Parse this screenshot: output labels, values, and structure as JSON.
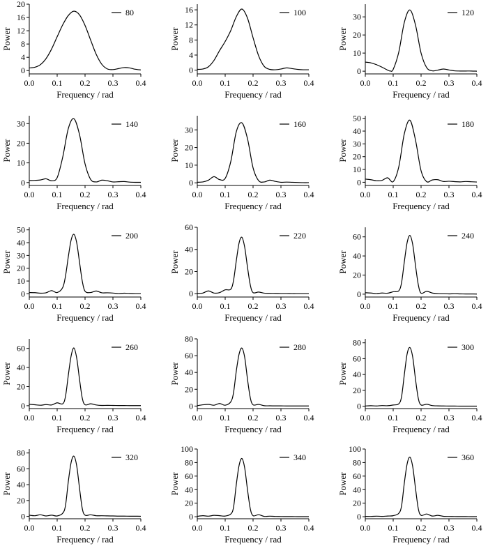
{
  "common": {
    "xlabel": "Frequency / rad",
    "ylabel": "Power",
    "xlim": [
      0,
      0.4
    ],
    "xticks": [
      0.0,
      0.1,
      0.2,
      0.3,
      0.4
    ],
    "xtick_labels": [
      "0.0",
      "0.1",
      "0.2",
      "0.3",
      "0.4"
    ]
  },
  "chart_data": [
    {
      "type": "line",
      "legend": "80",
      "ylim": [
        -1,
        20
      ],
      "yticks": [
        0,
        4,
        8,
        12,
        16,
        20
      ],
      "series": [
        {
          "name": "80",
          "x": [
            0.0,
            0.02,
            0.04,
            0.06,
            0.08,
            0.1,
            0.12,
            0.14,
            0.16,
            0.18,
            0.2,
            0.22,
            0.24,
            0.26,
            0.28,
            0.3,
            0.32,
            0.34,
            0.36,
            0.38,
            0.4
          ],
          "y": [
            0.8,
            1.0,
            1.8,
            3.6,
            6.5,
            10.2,
            13.8,
            16.6,
            17.9,
            16.8,
            13.6,
            9.2,
            4.9,
            1.9,
            0.5,
            0.3,
            0.6,
            0.9,
            0.8,
            0.4,
            0.2
          ]
        }
      ]
    },
    {
      "type": "line",
      "legend": "100",
      "ylim": [
        -1,
        17.5
      ],
      "yticks": [
        0,
        4,
        8,
        12,
        16
      ],
      "series": [
        {
          "name": "100",
          "x": [
            0.0,
            0.02,
            0.04,
            0.06,
            0.08,
            0.1,
            0.12,
            0.14,
            0.16,
            0.18,
            0.2,
            0.22,
            0.24,
            0.26,
            0.28,
            0.3,
            0.32,
            0.34,
            0.36,
            0.38,
            0.4
          ],
          "y": [
            0.2,
            0.3,
            0.9,
            2.6,
            5.2,
            7.6,
            10.5,
            14.2,
            16.2,
            13.8,
            8.6,
            3.8,
            1.0,
            0.2,
            0.1,
            0.3,
            0.6,
            0.4,
            0.2,
            0.1,
            0.1
          ]
        }
      ]
    },
    {
      "type": "line",
      "legend": "120",
      "ylim": [
        -1.5,
        37
      ],
      "yticks": [
        0,
        10,
        20,
        30
      ],
      "series": [
        {
          "name": "120",
          "x": [
            0.0,
            0.02,
            0.04,
            0.06,
            0.08,
            0.09,
            0.1,
            0.12,
            0.14,
            0.16,
            0.18,
            0.2,
            0.22,
            0.24,
            0.26,
            0.28,
            0.3,
            0.32,
            0.34,
            0.36,
            0.38,
            0.4
          ],
          "y": [
            5.0,
            4.6,
            3.6,
            2.2,
            0.6,
            0.1,
            1.0,
            10.5,
            27.0,
            33.8,
            25.5,
            10.0,
            2.0,
            0.2,
            0.6,
            1.2,
            0.7,
            0.2,
            0.1,
            0.1,
            0.1,
            0.0
          ]
        }
      ]
    },
    {
      "type": "line",
      "legend": "140",
      "ylim": [
        -1.5,
        34
      ],
      "yticks": [
        0,
        10,
        20,
        30
      ],
      "series": [
        {
          "name": "140",
          "x": [
            0.0,
            0.02,
            0.04,
            0.06,
            0.08,
            0.1,
            0.12,
            0.14,
            0.16,
            0.18,
            0.2,
            0.22,
            0.24,
            0.26,
            0.28,
            0.3,
            0.32,
            0.34,
            0.36,
            0.38,
            0.4
          ],
          "y": [
            1.0,
            1.1,
            1.3,
            1.9,
            0.9,
            2.5,
            13.0,
            27.5,
            32.5,
            24.5,
            9.5,
            1.6,
            0.3,
            1.2,
            0.9,
            0.3,
            0.4,
            0.5,
            0.2,
            0.1,
            0.1
          ]
        }
      ]
    },
    {
      "type": "line",
      "legend": "160",
      "ylim": [
        -1.5,
        38
      ],
      "yticks": [
        0,
        10,
        20,
        30
      ],
      "series": [
        {
          "name": "160",
          "x": [
            0.0,
            0.02,
            0.04,
            0.06,
            0.08,
            0.1,
            0.12,
            0.14,
            0.16,
            0.18,
            0.2,
            0.22,
            0.24,
            0.26,
            0.28,
            0.3,
            0.32,
            0.34,
            0.36,
            0.38,
            0.4
          ],
          "y": [
            0.3,
            0.5,
            1.5,
            3.5,
            1.8,
            2.5,
            12.0,
            29.0,
            34.0,
            25.0,
            8.5,
            1.2,
            0.5,
            1.5,
            0.8,
            0.3,
            0.4,
            0.3,
            0.2,
            0.1,
            0.1
          ]
        }
      ]
    },
    {
      "type": "line",
      "legend": "180",
      "ylim": [
        -2.5,
        52
      ],
      "yticks": [
        0,
        10,
        20,
        30,
        40,
        50
      ],
      "series": [
        {
          "name": "180",
          "x": [
            0.0,
            0.02,
            0.04,
            0.06,
            0.08,
            0.1,
            0.12,
            0.14,
            0.16,
            0.18,
            0.2,
            0.22,
            0.24,
            0.26,
            0.28,
            0.3,
            0.32,
            0.34,
            0.36,
            0.38,
            0.4
          ],
          "y": [
            2.5,
            2.0,
            1.2,
            1.5,
            3.5,
            0.5,
            12.0,
            38.0,
            48.5,
            33.0,
            9.0,
            0.5,
            1.8,
            2.0,
            0.6,
            0.8,
            0.5,
            0.3,
            0.6,
            0.4,
            0.2
          ]
        }
      ]
    },
    {
      "type": "line",
      "legend": "200",
      "ylim": [
        -2.5,
        52
      ],
      "yticks": [
        0,
        10,
        20,
        30,
        40,
        50
      ],
      "series": [
        {
          "name": "200",
          "x": [
            0.0,
            0.02,
            0.04,
            0.06,
            0.08,
            0.1,
            0.12,
            0.13,
            0.14,
            0.15,
            0.16,
            0.17,
            0.18,
            0.19,
            0.2,
            0.22,
            0.24,
            0.26,
            0.28,
            0.3,
            0.32,
            0.34,
            0.36,
            0.38,
            0.4
          ],
          "y": [
            1.0,
            0.9,
            0.5,
            0.8,
            2.5,
            1.0,
            5.0,
            14.0,
            29.0,
            42.0,
            46.5,
            40.0,
            25.0,
            10.0,
            2.0,
            1.0,
            2.2,
            0.8,
            0.8,
            0.6,
            0.2,
            0.5,
            0.3,
            0.2,
            0.2
          ]
        }
      ]
    },
    {
      "type": "line",
      "legend": "220",
      "ylim": [
        -3,
        60
      ],
      "yticks": [
        0,
        20,
        40,
        60
      ],
      "series": [
        {
          "name": "220",
          "x": [
            0.0,
            0.02,
            0.04,
            0.06,
            0.08,
            0.1,
            0.12,
            0.13,
            0.14,
            0.15,
            0.16,
            0.17,
            0.18,
            0.19,
            0.2,
            0.22,
            0.24,
            0.26,
            0.28,
            0.3,
            0.32,
            0.34,
            0.36,
            0.38,
            0.4
          ],
          "y": [
            0.3,
            0.6,
            2.5,
            0.6,
            1.0,
            3.5,
            4.0,
            12.0,
            30.0,
            46.0,
            51.0,
            42.0,
            24.0,
            8.0,
            1.0,
            1.5,
            0.5,
            0.4,
            0.3,
            0.2,
            0.2,
            0.1,
            0.1,
            0.1,
            0.1
          ]
        }
      ]
    },
    {
      "type": "line",
      "legend": "240",
      "ylim": [
        -3,
        70
      ],
      "yticks": [
        0,
        20,
        40,
        60
      ],
      "series": [
        {
          "name": "240",
          "x": [
            0.0,
            0.02,
            0.04,
            0.06,
            0.08,
            0.1,
            0.12,
            0.13,
            0.14,
            0.15,
            0.16,
            0.17,
            0.18,
            0.19,
            0.2,
            0.22,
            0.24,
            0.26,
            0.28,
            0.3,
            0.32,
            0.34,
            0.36,
            0.38,
            0.4
          ],
          "y": [
            1.5,
            1.2,
            0.6,
            1.2,
            1.0,
            2.5,
            3.5,
            12.0,
            34.0,
            54.0,
            61.5,
            52.0,
            30.0,
            10.0,
            1.0,
            3.0,
            1.2,
            0.6,
            0.5,
            0.3,
            0.5,
            0.3,
            0.2,
            0.2,
            0.1
          ]
        }
      ]
    },
    {
      "type": "line",
      "legend": "260",
      "ylim": [
        -3,
        70
      ],
      "yticks": [
        0,
        20,
        40,
        60
      ],
      "series": [
        {
          "name": "260",
          "x": [
            0.0,
            0.02,
            0.04,
            0.06,
            0.08,
            0.1,
            0.12,
            0.13,
            0.14,
            0.15,
            0.16,
            0.17,
            0.18,
            0.19,
            0.2,
            0.22,
            0.24,
            0.26,
            0.28,
            0.3,
            0.32,
            0.34,
            0.36,
            0.38,
            0.4
          ],
          "y": [
            1.5,
            1.0,
            0.5,
            1.2,
            0.8,
            3.0,
            2.0,
            10.0,
            32.0,
            52.0,
            60.5,
            50.0,
            28.0,
            8.0,
            1.0,
            2.0,
            0.8,
            0.3,
            0.4,
            0.3,
            0.2,
            0.2,
            0.1,
            0.1,
            0.1
          ]
        }
      ]
    },
    {
      "type": "line",
      "legend": "280",
      "ylim": [
        -3,
        80
      ],
      "yticks": [
        0,
        20,
        40,
        60,
        80
      ],
      "series": [
        {
          "name": "280",
          "x": [
            0.0,
            0.02,
            0.04,
            0.06,
            0.08,
            0.1,
            0.12,
            0.13,
            0.14,
            0.15,
            0.16,
            0.17,
            0.18,
            0.19,
            0.2,
            0.22,
            0.24,
            0.26,
            0.28,
            0.3,
            0.32,
            0.34,
            0.36,
            0.38,
            0.4
          ],
          "y": [
            0.5,
            1.5,
            2.0,
            1.0,
            3.0,
            1.0,
            5.0,
            16.0,
            42.0,
            62.0,
            69.0,
            58.0,
            32.0,
            10.0,
            1.5,
            2.0,
            0.4,
            0.3,
            0.2,
            0.2,
            0.1,
            0.1,
            0.1,
            0.1,
            0.1
          ]
        }
      ]
    },
    {
      "type": "line",
      "legend": "300",
      "ylim": [
        -3,
        85
      ],
      "yticks": [
        0,
        20,
        40,
        60,
        80
      ],
      "series": [
        {
          "name": "300",
          "x": [
            0.0,
            0.02,
            0.04,
            0.06,
            0.08,
            0.1,
            0.12,
            0.13,
            0.14,
            0.15,
            0.16,
            0.17,
            0.18,
            0.19,
            0.2,
            0.22,
            0.24,
            0.26,
            0.28,
            0.3,
            0.32,
            0.34,
            0.36,
            0.38,
            0.4
          ],
          "y": [
            0.3,
            0.6,
            0.3,
            0.8,
            0.6,
            1.5,
            3.0,
            12.0,
            40.0,
            66.0,
            74.0,
            62.0,
            34.0,
            10.0,
            1.5,
            2.5,
            0.8,
            0.4,
            0.3,
            0.2,
            0.2,
            0.1,
            0.1,
            0.1,
            0.1
          ]
        }
      ]
    },
    {
      "type": "line",
      "legend": "320",
      "ylim": [
        -3,
        85
      ],
      "yticks": [
        0,
        20,
        40,
        60,
        80
      ],
      "series": [
        {
          "name": "320",
          "x": [
            0.0,
            0.02,
            0.04,
            0.06,
            0.08,
            0.1,
            0.12,
            0.13,
            0.14,
            0.15,
            0.16,
            0.17,
            0.18,
            0.19,
            0.2,
            0.22,
            0.24,
            0.26,
            0.28,
            0.3,
            0.32,
            0.34,
            0.36,
            0.38,
            0.4
          ],
          "y": [
            1.5,
            0.8,
            2.0,
            0.5,
            1.5,
            0.5,
            4.0,
            14.0,
            44.0,
            68.0,
            76.0,
            64.0,
            36.0,
            10.0,
            1.5,
            2.0,
            0.8,
            0.8,
            0.6,
            0.5,
            0.3,
            0.3,
            0.2,
            0.2,
            0.1
          ]
        }
      ]
    },
    {
      "type": "line",
      "legend": "340",
      "ylim": [
        -3,
        100
      ],
      "yticks": [
        0,
        20,
        40,
        60,
        80,
        100
      ],
      "series": [
        {
          "name": "340",
          "x": [
            0.0,
            0.02,
            0.04,
            0.06,
            0.08,
            0.1,
            0.12,
            0.13,
            0.14,
            0.15,
            0.16,
            0.17,
            0.18,
            0.19,
            0.2,
            0.22,
            0.24,
            0.26,
            0.28,
            0.3,
            0.32,
            0.34,
            0.36,
            0.38,
            0.4
          ],
          "y": [
            0.5,
            1.5,
            0.8,
            2.0,
            1.5,
            1.0,
            4.0,
            14.0,
            48.0,
            76.0,
            86.0,
            72.0,
            40.0,
            12.0,
            1.5,
            3.0,
            0.5,
            0.8,
            0.4,
            0.3,
            0.2,
            0.2,
            0.1,
            0.1,
            0.1
          ]
        }
      ]
    },
    {
      "type": "line",
      "legend": "360",
      "ylim": [
        -3,
        100
      ],
      "yticks": [
        0,
        20,
        40,
        60,
        80,
        100
      ],
      "series": [
        {
          "name": "360",
          "x": [
            0.0,
            0.02,
            0.04,
            0.06,
            0.08,
            0.1,
            0.12,
            0.13,
            0.14,
            0.15,
            0.16,
            0.17,
            0.18,
            0.19,
            0.2,
            0.22,
            0.24,
            0.26,
            0.28,
            0.3,
            0.32,
            0.34,
            0.36,
            0.38,
            0.4
          ],
          "y": [
            0.5,
            0.4,
            0.8,
            0.5,
            1.0,
            1.5,
            5.0,
            16.0,
            50.0,
            78.0,
            88.0,
            74.0,
            42.0,
            12.0,
            2.0,
            4.0,
            1.0,
            2.0,
            0.6,
            0.4,
            0.3,
            0.2,
            0.2,
            0.1,
            0.1
          ]
        }
      ]
    }
  ]
}
